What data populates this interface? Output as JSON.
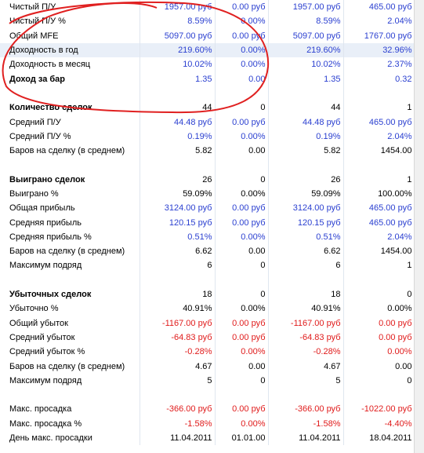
{
  "colors": {
    "blue": "#2a3fd0",
    "red": "#e01b1b",
    "annotation": "#e02020"
  },
  "rows": [
    {
      "label": "Чистый П/У",
      "values": [
        "1957.00 руб",
        "0.00 руб",
        "1957.00 руб",
        "465.00 руб"
      ],
      "color": "blue"
    },
    {
      "label": "Чистый П/У %",
      "values": [
        "8.59%",
        "0.00%",
        "8.59%",
        "2.04%"
      ],
      "color": "blue"
    },
    {
      "label": "Общий MFE",
      "values": [
        "5097.00 руб",
        "0.00 руб",
        "5097.00 руб",
        "1767.00 руб"
      ],
      "color": "blue"
    },
    {
      "label": "Доходность в год",
      "values": [
        "219.60%",
        "0.00%",
        "219.60%",
        "32.96%"
      ],
      "color": "blue",
      "highlight": true
    },
    {
      "label": "Доходность в месяц",
      "values": [
        "10.02%",
        "0.00%",
        "10.02%",
        "2.37%"
      ],
      "color": "blue"
    },
    {
      "label": "Доход за бар",
      "values": [
        "1.35",
        "0.00",
        "1.35",
        "0.32"
      ],
      "color": "blue",
      "bold": true
    },
    {
      "blank": true
    },
    {
      "label": "Количество сделок",
      "values": [
        "44",
        "0",
        "44",
        "1"
      ],
      "color": "black",
      "bold": true
    },
    {
      "label": "Средний П/У",
      "values": [
        "44.48 руб",
        "0.00 руб",
        "44.48 руб",
        "465.00 руб"
      ],
      "color": "blue"
    },
    {
      "label": "Средний П/У %",
      "values": [
        "0.19%",
        "0.00%",
        "0.19%",
        "2.04%"
      ],
      "color": "blue"
    },
    {
      "label": "Баров на сделку (в среднем)",
      "values": [
        "5.82",
        "0.00",
        "5.82",
        "1454.00"
      ],
      "color": "black"
    },
    {
      "blank": true
    },
    {
      "label": "Выиграно сделок",
      "values": [
        "26",
        "0",
        "26",
        "1"
      ],
      "color": "black",
      "bold": true
    },
    {
      "label": "Выиграно %",
      "values": [
        "59.09%",
        "0.00%",
        "59.09%",
        "100.00%"
      ],
      "color": "black"
    },
    {
      "label": "Общая прибыль",
      "values": [
        "3124.00 руб",
        "0.00 руб",
        "3124.00 руб",
        "465.00 руб"
      ],
      "color": "blue"
    },
    {
      "label": "Средняя прибыль",
      "values": [
        "120.15 руб",
        "0.00 руб",
        "120.15 руб",
        "465.00 руб"
      ],
      "color": "blue"
    },
    {
      "label": "Средняя прибыль %",
      "values": [
        "0.51%",
        "0.00%",
        "0.51%",
        "2.04%"
      ],
      "color": "blue"
    },
    {
      "label": "Баров на сделку (в среднем)",
      "values": [
        "6.62",
        "0.00",
        "6.62",
        "1454.00"
      ],
      "color": "black"
    },
    {
      "label": "Максимум подряд",
      "values": [
        "6",
        "0",
        "6",
        "1"
      ],
      "color": "black"
    },
    {
      "blank": true
    },
    {
      "label": "Убыточных сделок",
      "values": [
        "18",
        "0",
        "18",
        "0"
      ],
      "color": "black",
      "bold": true
    },
    {
      "label": "Убыточно %",
      "values": [
        "40.91%",
        "0.00%",
        "40.91%",
        "0.00%"
      ],
      "color": "black"
    },
    {
      "label": "Общий убыток",
      "values": [
        "-1167.00 руб",
        "0.00 руб",
        "-1167.00 руб",
        "0.00 руб"
      ],
      "color": "red"
    },
    {
      "label": "Средний убыток",
      "values": [
        "-64.83 руб",
        "0.00 руб",
        "-64.83 руб",
        "0.00 руб"
      ],
      "color": "red"
    },
    {
      "label": "Средний убыток %",
      "values": [
        "-0.28%",
        "0.00%",
        "-0.28%",
        "0.00%"
      ],
      "color": "red"
    },
    {
      "label": "Баров на сделку (в среднем)",
      "values": [
        "4.67",
        "0.00",
        "4.67",
        "0.00"
      ],
      "color": "black"
    },
    {
      "label": "Максимум подряд",
      "values": [
        "5",
        "0",
        "5",
        "0"
      ],
      "color": "black"
    },
    {
      "blank": true
    },
    {
      "label": "Макс. просадка",
      "values": [
        "-366.00 руб",
        "0.00 руб",
        "-366.00 руб",
        "-1022.00 руб"
      ],
      "color": "red"
    },
    {
      "label": "Макс. просадка %",
      "values": [
        "-1.58%",
        "0.00%",
        "-1.58%",
        "-4.40%"
      ],
      "color": "red"
    },
    {
      "label": "День макс. просадки",
      "values": [
        "11.04.2011",
        "01.01.00",
        "11.04.2011",
        "18.04.2011"
      ],
      "color": "black"
    }
  ]
}
